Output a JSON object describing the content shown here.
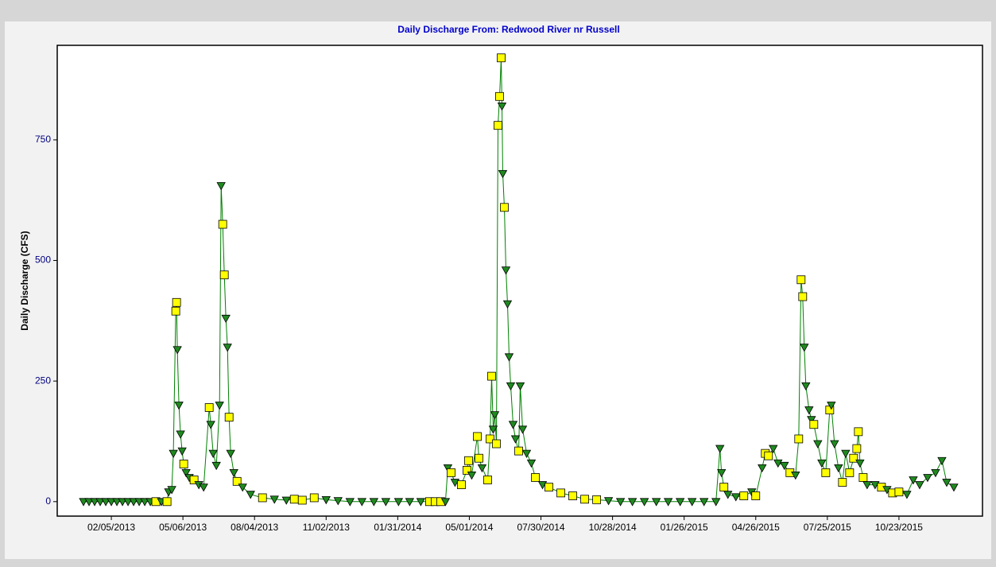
{
  "chart_data": {
    "type": "line",
    "title": "Daily Discharge From: Redwood River nr Russell",
    "y_label": "Daily Discharge (CFS)",
    "xlim": [
      "11/29/2012",
      "02/05/2016"
    ],
    "xticks": [
      "02/05/2013",
      "05/06/2013",
      "08/04/2013",
      "11/02/2013",
      "01/31/2014",
      "05/01/2014",
      "07/30/2014",
      "10/28/2014",
      "01/26/2015",
      "04/26/2015",
      "07/25/2015",
      "10/23/2015"
    ],
    "ylim": [
      -30,
      946
    ],
    "yticks": [
      0,
      250,
      500,
      750
    ],
    "x": [
      "01/01/2013",
      "01/08/2013",
      "01/15/2013",
      "01/22/2013",
      "01/29/2013",
      "02/05/2013",
      "02/12/2013",
      "02/19/2013",
      "02/26/2013",
      "03/05/2013",
      "03/12/2013",
      "03/19/2013",
      "03/26/2013",
      "04/02/2013",
      "04/09/2013",
      "04/16/2013",
      "04/18/2013",
      "04/22/2013",
      "04/24/2013",
      "04/27/2013",
      "04/28/2013",
      "04/29/2013",
      "05/01/2013",
      "05/03/2013",
      "05/05/2013",
      "05/07/2013",
      "05/10/2013",
      "05/14/2013",
      "05/20/2013",
      "05/26/2013",
      "06/01/2013",
      "06/08/2013",
      "06/10/2013",
      "06/13/2013",
      "06/17/2013",
      "06/21/2013",
      "06/23/2013",
      "06/25/2013",
      "06/27/2013",
      "06/29/2013",
      "07/01/2013",
      "07/03/2013",
      "07/05/2013",
      "07/09/2013",
      "07/13/2013",
      "07/20/2013",
      "07/30/2013",
      "08/14/2013",
      "08/29/2013",
      "09/13/2013",
      "09/23/2013",
      "10/03/2013",
      "10/18/2013",
      "11/02/2013",
      "11/17/2013",
      "12/02/2013",
      "12/17/2013",
      "01/01/2014",
      "01/16/2014",
      "02/01/2014",
      "02/15/2014",
      "03/01/2014",
      "03/12/2014",
      "03/19/2014",
      "03/26/2014",
      "04/01/2014",
      "04/04/2014",
      "04/08/2014",
      "04/13/2014",
      "04/21/2014",
      "04/28/2014",
      "04/30/2014",
      "05/04/2014",
      "05/11/2014",
      "05/13/2014",
      "05/17/2014",
      "05/24/2014",
      "05/27/2014",
      "05/29/2014",
      "05/31/2014",
      "06/02/2014",
      "06/04/2014",
      "06/06/2014",
      "06/08/2014",
      "06/10/2014",
      "06/11/2014",
      "06/12/2014",
      "06/14/2014",
      "06/16/2014",
      "06/18/2014",
      "06/20/2014",
      "06/22/2014",
      "06/25/2014",
      "06/28/2014",
      "07/02/2014",
      "07/04/2014",
      "07/07/2014",
      "07/12/2014",
      "07/18/2014",
      "07/23/2014",
      "08/01/2014",
      "08/09/2014",
      "08/24/2014",
      "09/08/2014",
      "09/23/2014",
      "10/08/2014",
      "10/23/2014",
      "11/07/2014",
      "11/22/2014",
      "12/07/2014",
      "12/22/2014",
      "01/06/2015",
      "01/21/2015",
      "02/05/2015",
      "02/20/2015",
      "03/07/2015",
      "03/12/2015",
      "03/14/2015",
      "03/17/2015",
      "03/22/2015",
      "04/01/2015",
      "04/11/2015",
      "04/21/2015",
      "04/26/2015",
      "05/04/2015",
      "05/08/2015",
      "05/12/2015",
      "05/18/2015",
      "05/24/2015",
      "06/01/2015",
      "06/08/2015",
      "06/15/2015",
      "06/19/2015",
      "06/22/2015",
      "06/24/2015",
      "06/26/2015",
      "06/28/2015",
      "07/02/2015",
      "07/05/2015",
      "07/08/2015",
      "07/13/2015",
      "07/18/2015",
      "07/23/2015",
      "07/28/2015",
      "07/30/2015",
      "08/03/2015",
      "08/08/2015",
      "08/13/2015",
      "08/17/2015",
      "08/22/2015",
      "08/27/2015",
      "08/31/2015",
      "09/02/2015",
      "09/04/2015",
      "09/08/2015",
      "09/13/2015",
      "09/23/2015",
      "10/01/2015",
      "10/08/2015",
      "10/15/2015",
      "10/23/2015",
      "11/02/2015",
      "11/10/2015",
      "11/18/2015",
      "11/28/2015",
      "12/08/2015",
      "12/16/2015",
      "12/22/2015",
      "12/31/2015"
    ],
    "series": [
      {
        "color": "#008000",
        "marker_colors": {
          "square": "#ffff00",
          "triangle": "#1f8a1f"
        },
        "values": [
          0,
          0,
          0,
          0,
          0,
          0,
          0,
          0,
          0,
          0,
          0,
          0,
          0,
          0,
          0,
          0,
          20,
          25,
          100,
          395,
          413,
          315,
          200,
          140,
          105,
          78,
          60,
          50,
          45,
          35,
          30,
          195,
          160,
          100,
          75,
          200,
          655,
          575,
          470,
          380,
          320,
          175,
          100,
          60,
          42,
          30,
          15,
          8,
          5,
          3,
          5,
          3,
          8,
          4,
          2,
          0,
          0,
          0,
          0,
          0,
          0,
          0,
          0,
          0,
          0,
          0,
          70,
          60,
          40,
          35,
          65,
          85,
          55,
          135,
          90,
          70,
          45,
          130,
          260,
          150,
          180,
          120,
          780,
          840,
          920,
          820,
          680,
          610,
          480,
          410,
          300,
          240,
          160,
          130,
          105,
          240,
          150,
          100,
          80,
          50,
          35,
          30,
          18,
          12,
          5,
          4,
          2,
          0,
          0,
          0,
          0,
          0,
          0,
          0,
          0,
          0,
          110,
          60,
          30,
          15,
          10,
          12,
          20,
          12,
          70,
          100,
          95,
          110,
          80,
          75,
          60,
          55,
          130,
          460,
          425,
          320,
          240,
          190,
          170,
          160,
          120,
          80,
          60,
          190,
          200,
          120,
          70,
          40,
          100,
          60,
          90,
          110,
          145,
          80,
          50,
          35,
          35,
          30,
          25,
          18,
          20,
          15,
          45,
          35,
          50,
          60,
          85,
          40,
          30
        ],
        "markers": [
          "triangle",
          "triangle",
          "triangle",
          "triangle",
          "triangle",
          "triangle",
          "triangle",
          "triangle",
          "triangle",
          "triangle",
          "triangle",
          "triangle",
          "triangle",
          "square",
          "triangle",
          "square",
          "triangle",
          "triangle",
          "triangle",
          "square",
          "square",
          "triangle",
          "triangle",
          "triangle",
          "triangle",
          "square",
          "triangle",
          "triangle",
          "square",
          "triangle",
          "triangle",
          "square",
          "triangle",
          "triangle",
          "triangle",
          "triangle",
          "triangle",
          "square",
          "square",
          "triangle",
          "triangle",
          "square",
          "triangle",
          "triangle",
          "square",
          "triangle",
          "triangle",
          "square",
          "triangle",
          "triangle",
          "square",
          "square",
          "square",
          "triangle",
          "triangle",
          "triangle",
          "triangle",
          "triangle",
          "triangle",
          "triangle",
          "triangle",
          "triangle",
          "square",
          "square",
          "square",
          "triangle",
          "triangle",
          "square",
          "triangle",
          "square",
          "square",
          "square",
          "triangle",
          "square",
          "square",
          "triangle",
          "square",
          "square",
          "square",
          "triangle",
          "triangle",
          "square",
          "square",
          "square",
          "square",
          "triangle",
          "triangle",
          "square",
          "triangle",
          "triangle",
          "triangle",
          "triangle",
          "triangle",
          "triangle",
          "square",
          "triangle",
          "triangle",
          "triangle",
          "triangle",
          "square",
          "triangle",
          "square",
          "square",
          "square",
          "square",
          "square",
          "triangle",
          "triangle",
          "triangle",
          "triangle",
          "triangle",
          "triangle",
          "triangle",
          "triangle",
          "triangle",
          "triangle",
          "triangle",
          "triangle",
          "square",
          "triangle",
          "triangle",
          "square",
          "triangle",
          "square",
          "triangle",
          "square",
          "square",
          "triangle",
          "triangle",
          "triangle",
          "square",
          "triangle",
          "square",
          "square",
          "square",
          "triangle",
          "triangle",
          "triangle",
          "triangle",
          "square",
          "triangle",
          "triangle",
          "square",
          "square",
          "triangle",
          "triangle",
          "triangle",
          "square",
          "triangle",
          "square",
          "square",
          "square",
          "square",
          "triangle",
          "square",
          "triangle",
          "triangle",
          "square",
          "triangle",
          "square",
          "square",
          "triangle",
          "triangle",
          "triangle",
          "triangle",
          "triangle",
          "triangle",
          "triangle",
          "triangle"
        ]
      }
    ]
  }
}
